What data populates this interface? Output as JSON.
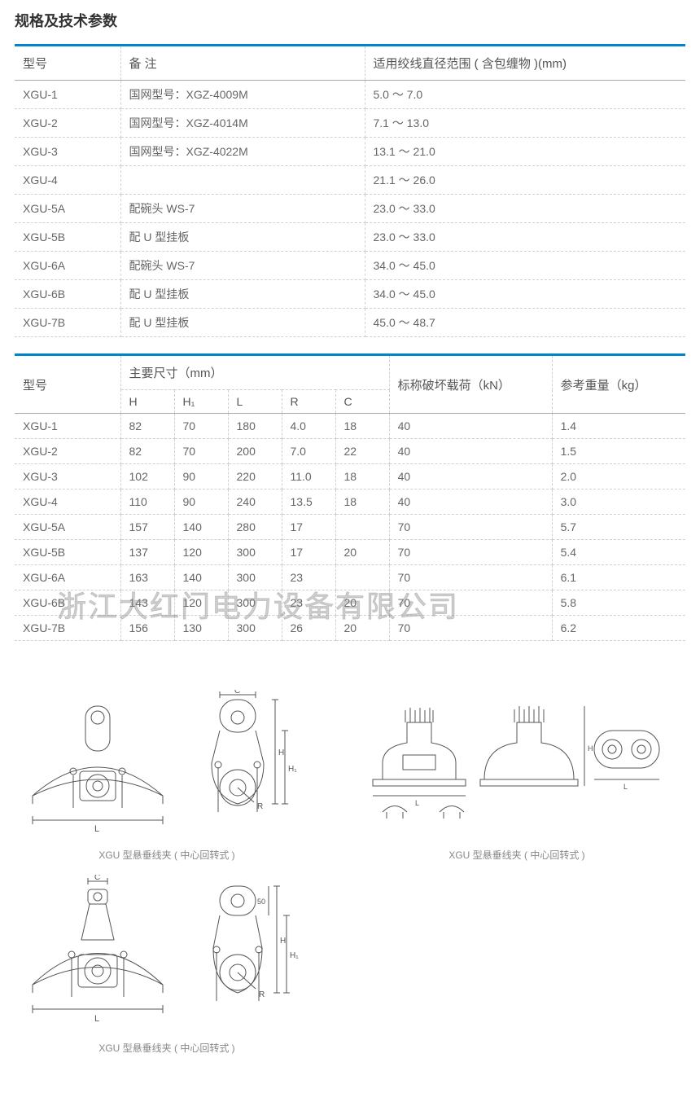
{
  "page_title": "规格及技术参数",
  "watermark": "浙江大红门电力设备有限公司",
  "table1": {
    "header": {
      "c1": "型号",
      "c2": "备  注",
      "c3": "适用绞线直径范围 ( 含包缠物 )(mm)"
    },
    "rows": [
      {
        "c1": "XGU-1",
        "c2": "国网型号：XGZ-4009M",
        "c3": "5.0 ～ 7.0"
      },
      {
        "c1": "XGU-2",
        "c2": "国网型号：XGZ-4014M",
        "c3": "7.1 ～ 13.0"
      },
      {
        "c1": "XGU-3",
        "c2": "国网型号：XGZ-4022M",
        "c3": "13.1 ～ 21.0"
      },
      {
        "c1": "XGU-4",
        "c2": "",
        "c3": "21.1 ～ 26.0"
      },
      {
        "c1": "XGU-5A",
        "c2": "配碗头 WS-7",
        "c3": "23.0 ～ 33.0"
      },
      {
        "c1": "XGU-5B",
        "c2": "配 U 型挂板",
        "c3": "23.0 ～ 33.0"
      },
      {
        "c1": "XGU-6A",
        "c2": "配碗头 WS-7",
        "c3": "34.0 ～ 45.0"
      },
      {
        "c1": "XGU-6B",
        "c2": "配 U 型挂板",
        "c3": "34.0 ～ 45.0"
      },
      {
        "c1": "XGU-7B",
        "c2": "配 U 型挂板",
        "c3": "45.0 ～ 48.7"
      }
    ]
  },
  "table2": {
    "header": {
      "c1": "型号",
      "dim_group": "主要尺寸（mm）",
      "c2": "H",
      "c3": "H₁",
      "c4": "L",
      "c5": "R",
      "c6": "C",
      "c7": "标称破坏载荷（kN）",
      "c8": "参考重量（kg）"
    },
    "rows": [
      {
        "c1": "XGU-1",
        "c2": "82",
        "c3": "70",
        "c4": "180",
        "c5": "4.0",
        "c6": "18",
        "c7": "40",
        "c8": "1.4"
      },
      {
        "c1": "XGU-2",
        "c2": "82",
        "c3": "70",
        "c4": "200",
        "c5": "7.0",
        "c6": "22",
        "c7": "40",
        "c8": "1.5"
      },
      {
        "c1": "XGU-3",
        "c2": "102",
        "c3": "90",
        "c4": "220",
        "c5": "11.0",
        "c6": "18",
        "c7": "40",
        "c8": "2.0"
      },
      {
        "c1": "XGU-4",
        "c2": "110",
        "c3": "90",
        "c4": "240",
        "c5": "13.5",
        "c6": "18",
        "c7": "40",
        "c8": "3.0"
      },
      {
        "c1": "XGU-5A",
        "c2": "157",
        "c3": "140",
        "c4": "280",
        "c5": "17",
        "c6": "",
        "c7": "70",
        "c8": "5.7"
      },
      {
        "c1": "XGU-5B",
        "c2": "137",
        "c3": "120",
        "c4": "300",
        "c5": "17",
        "c6": "20",
        "c7": "70",
        "c8": "5.4"
      },
      {
        "c1": "XGU-6A",
        "c2": "163",
        "c3": "140",
        "c4": "300",
        "c5": "23",
        "c6": "",
        "c7": "70",
        "c8": "6.1"
      },
      {
        "c1": "XGU-6B",
        "c2": "143",
        "c3": "120",
        "c4": "300",
        "c5": "23",
        "c6": "20",
        "c7": "70",
        "c8": "5.8"
      },
      {
        "c1": "XGU-7B",
        "c2": "156",
        "c3": "130",
        "c4": "300",
        "c5": "26",
        "c6": "20",
        "c7": "70",
        "c8": "6.2"
      }
    ]
  },
  "diagrams": {
    "caption": "XGU 型悬垂线夹 ( 中心回转式 )",
    "labels": {
      "L": "L",
      "H": "H",
      "H1": "H₁",
      "R": "R",
      "C": "C"
    }
  },
  "colors": {
    "accent": "#0085c8",
    "text": "#666666",
    "heading": "#333333",
    "border_dash": "#d0d0d0",
    "border_solid": "#aaaaaa",
    "line": "#555555"
  }
}
